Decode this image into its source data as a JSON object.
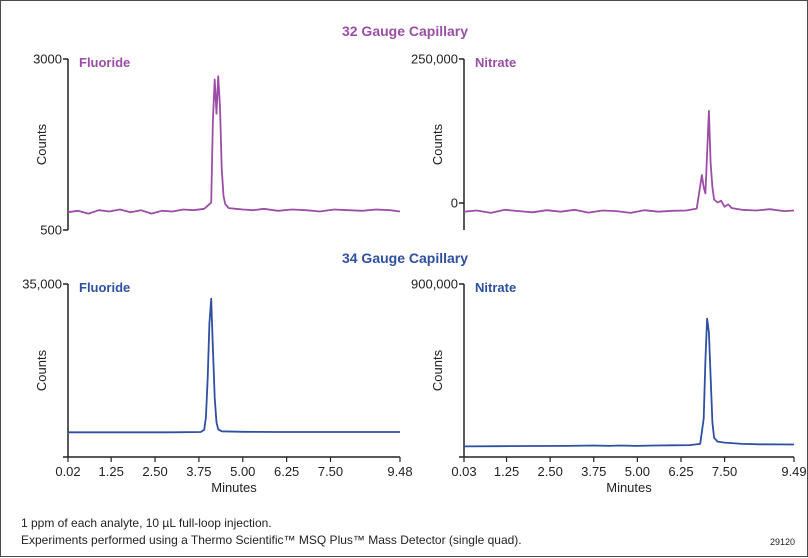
{
  "colors": {
    "purple": "#9b4ea6",
    "blue": "#2f4fa0",
    "axis": "#222222"
  },
  "footnote": {
    "line1": "1 ppm of each analyte, 10 µL full-loop injection.",
    "line2": "Experiments performed using a Thermo Scientific™ MSQ Plus™ Mass Detector (single quad).",
    "code": "29120"
  },
  "chart_data": [
    {
      "type": "line",
      "group": "32 Gauge Capillary",
      "title": "Fluoride",
      "ylabel": "Counts",
      "xlabel": "",
      "ylim": [
        500,
        3000
      ],
      "yticks": [
        "3000",
        "500"
      ],
      "xlim": [
        0.02,
        9.48
      ],
      "color": "#9b4ea6",
      "x": [
        0.02,
        0.3,
        0.6,
        0.9,
        1.2,
        1.5,
        1.8,
        2.1,
        2.4,
        2.7,
        3.0,
        3.3,
        3.6,
        3.9,
        4.1,
        4.15,
        4.2,
        4.25,
        4.3,
        4.35,
        4.4,
        4.45,
        4.5,
        4.6,
        4.8,
        5.0,
        5.3,
        5.6,
        6.0,
        6.4,
        6.8,
        7.2,
        7.6,
        8.0,
        8.4,
        8.8,
        9.2,
        9.48
      ],
      "y": [
        760,
        780,
        740,
        790,
        770,
        800,
        760,
        790,
        740,
        780,
        770,
        800,
        790,
        810,
        900,
        2100,
        2700,
        2200,
        2750,
        2300,
        1400,
        1000,
        880,
        820,
        810,
        800,
        790,
        810,
        780,
        800,
        790,
        770,
        800,
        790,
        780,
        800,
        790,
        770
      ]
    },
    {
      "type": "line",
      "group": "32 Gauge Capillary",
      "title": "Nitrate",
      "ylabel": "Counts",
      "xlabel": "",
      "ylim": [
        -30000,
        250000
      ],
      "yticks": [
        "250,000",
        "0"
      ],
      "xlim": [
        0.03,
        9.49
      ],
      "color": "#9b4ea6",
      "x": [
        0.03,
        0.4,
        0.8,
        1.2,
        1.6,
        2.0,
        2.4,
        2.8,
        3.2,
        3.6,
        4.0,
        4.4,
        4.8,
        5.2,
        5.6,
        6.0,
        6.4,
        6.7,
        6.85,
        6.9,
        6.95,
        7.0,
        7.05,
        7.1,
        7.15,
        7.2,
        7.3,
        7.4,
        7.5,
        7.6,
        7.7,
        7.8,
        8.0,
        8.4,
        8.8,
        9.2,
        9.49
      ],
      "y": [
        0,
        2000,
        -2000,
        3000,
        1000,
        -1000,
        2500,
        0,
        3000,
        -1500,
        2000,
        1000,
        -2000,
        2500,
        0,
        1500,
        2000,
        5000,
        60000,
        40000,
        30000,
        95000,
        165000,
        80000,
        40000,
        20000,
        15000,
        18000,
        8000,
        12000,
        6000,
        5000,
        3000,
        2000,
        4000,
        1000,
        2000
      ]
    },
    {
      "type": "line",
      "group": "34 Gauge Capillary",
      "title": "Fluoride",
      "ylabel": "Counts",
      "xlabel": "Minutes",
      "ylim": [
        0,
        35000
      ],
      "yticks": [
        "35,000"
      ],
      "xlim": [
        0.02,
        9.48
      ],
      "xticks": [
        "0.02",
        "1.25",
        "2.50",
        "3.75",
        "5.00",
        "6.25",
        "7.50",
        "9.48"
      ],
      "color": "#2f4fa0",
      "x": [
        0.02,
        1.0,
        2.0,
        3.0,
        3.8,
        3.9,
        3.95,
        4.0,
        4.05,
        4.1,
        4.15,
        4.2,
        4.25,
        4.3,
        4.4,
        5.0,
        6.0,
        7.0,
        8.0,
        9.48
      ],
      "y": [
        5000,
        5000,
        5000,
        5000,
        5050,
        5500,
        8000,
        16000,
        27000,
        32000,
        22000,
        12000,
        7000,
        5600,
        5200,
        5100,
        5050,
        5050,
        5050,
        5050
      ]
    },
    {
      "type": "line",
      "group": "34 Gauge Capillary",
      "title": "Nitrate",
      "ylabel": "Counts",
      "xlabel": "Minutes",
      "ylim": [
        0,
        900000
      ],
      "yticks": [
        "900,000"
      ],
      "xlim": [
        0.03,
        9.49
      ],
      "xticks": [
        "0.03",
        "1.25",
        "2.50",
        "3.75",
        "5.00",
        "6.25",
        "7.50",
        "9.49"
      ],
      "color": "#2f4fa0",
      "x": [
        0.03,
        1.0,
        2.0,
        3.0,
        3.75,
        4.2,
        4.5,
        5.0,
        5.5,
        6.0,
        6.5,
        6.8,
        6.9,
        6.95,
        7.0,
        7.05,
        7.1,
        7.15,
        7.2,
        7.3,
        7.5,
        8.0,
        8.5,
        9.49
      ],
      "y": [
        55000,
        56000,
        57000,
        58000,
        60000,
        58000,
        60000,
        58000,
        60000,
        61000,
        62000,
        68000,
        200000,
        500000,
        720000,
        650000,
        420000,
        180000,
        100000,
        80000,
        75000,
        68000,
        66000,
        65000
      ]
    }
  ],
  "section_titles": [
    "32 Gauge Capillary",
    "34 Gauge Capillary"
  ]
}
